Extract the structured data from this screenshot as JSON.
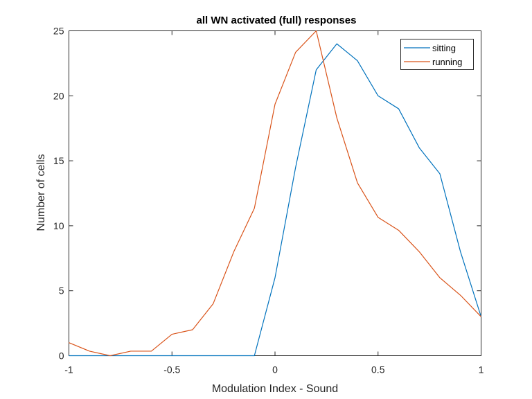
{
  "chart_data": {
    "type": "line",
    "title": "all WN activated (full) responses",
    "xlabel": "Modulation Index - Sound",
    "ylabel": "Number of cells",
    "xlim": [
      -1,
      1
    ],
    "ylim": [
      0,
      25
    ],
    "xticks": [
      -1,
      -0.5,
      0,
      0.5,
      1
    ],
    "xtick_labels": [
      "-1",
      "-0.5",
      "0",
      "0.5",
      "1"
    ],
    "yticks": [
      0,
      5,
      10,
      15,
      20,
      25
    ],
    "ytick_labels": [
      "0",
      "5",
      "10",
      "15",
      "20",
      "25"
    ],
    "grid": false,
    "legend_position": "top-right",
    "x": [
      -1,
      -0.9,
      -0.8,
      -0.7,
      -0.6,
      -0.5,
      -0.4,
      -0.3,
      -0.2,
      -0.1,
      0,
      0.1,
      0.2,
      0.3,
      0.4,
      0.5,
      0.6,
      0.7,
      0.8,
      0.9,
      1
    ],
    "series": [
      {
        "name": "sitting",
        "color": "#0072BD",
        "values": [
          0,
          0,
          0,
          0,
          0,
          0,
          0,
          0,
          0,
          0,
          6,
          14.5,
          22,
          24,
          22.7,
          20,
          19,
          16,
          14,
          8,
          3
        ]
      },
      {
        "name": "running",
        "color": "#D95319",
        "values": [
          1,
          0.35,
          0,
          0.35,
          0.35,
          1.65,
          2,
          4,
          8,
          11.35,
          19.35,
          23.35,
          25,
          18.3,
          13.3,
          10.65,
          9.65,
          8,
          6,
          4.65,
          3
        ]
      }
    ]
  }
}
